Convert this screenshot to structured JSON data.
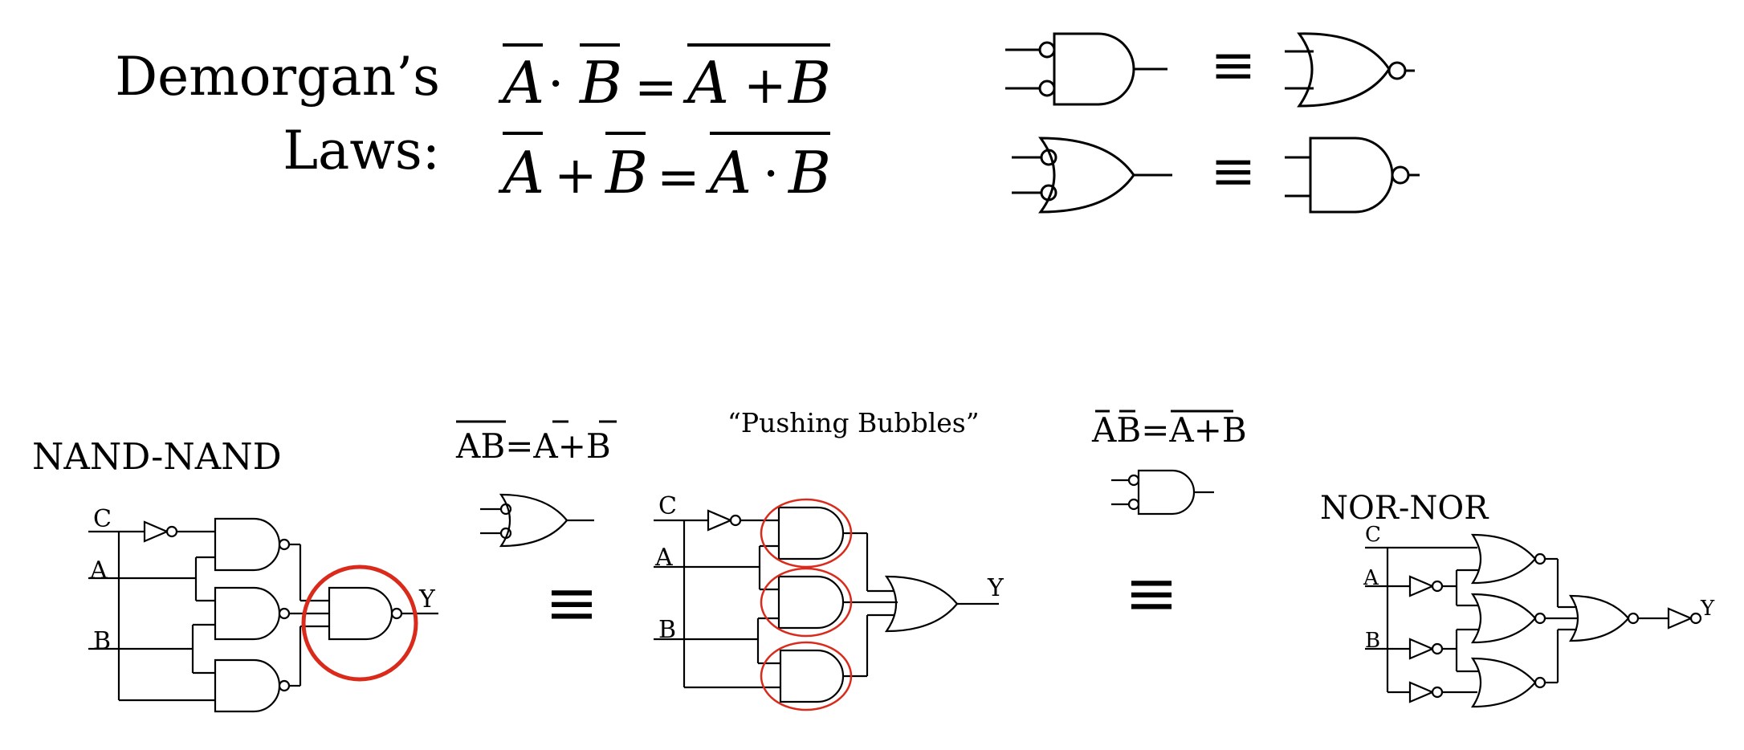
{
  "laws": {
    "title_line1": "Demorgan’s",
    "title_line2": "Laws:",
    "law1": {
      "a": "A",
      "dot": "·",
      "b": "B",
      "eq": "=",
      "rhs_a": "A",
      "rhs_op": "+",
      "rhs_b": "B"
    },
    "law2": {
      "a": "A",
      "plus": "+",
      "b": "B",
      "eq": "=",
      "rhs_a": "A",
      "rhs_op": "·",
      "rhs_b": "B"
    },
    "equiv": "≡"
  },
  "nand_nand": {
    "title": "NAND-NAND",
    "inputs": [
      "C",
      "A",
      "B"
    ],
    "output": "Y"
  },
  "middle_eq": {
    "formula": "AB=A+B",
    "equiv": "≡"
  },
  "pushing": {
    "caption": "“Pushing Bubbles”",
    "inputs": [
      "C",
      "A",
      "B"
    ],
    "output": "Y"
  },
  "right_eq": {
    "formula": "AB=A+B",
    "equiv": "≡"
  },
  "nor_nor": {
    "title": "NOR-NOR",
    "inputs": [
      "C",
      "A",
      "B"
    ],
    "output": "Y"
  },
  "colors": {
    "highlight": "#d92a1c",
    "ink": "#000000"
  }
}
